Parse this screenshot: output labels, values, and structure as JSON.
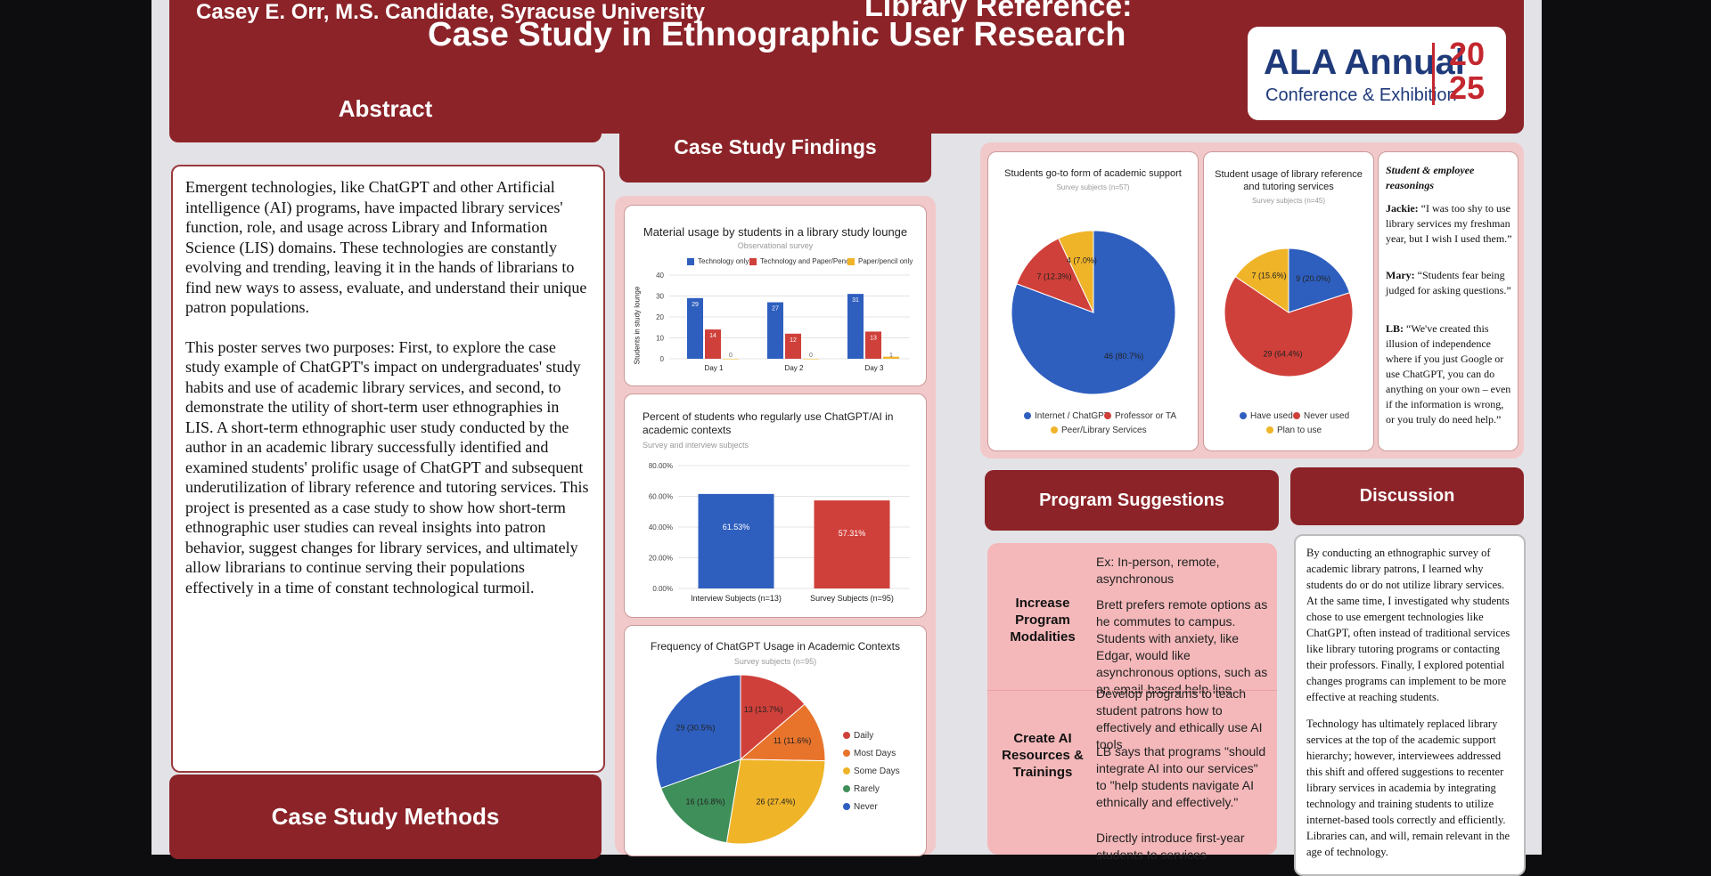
{
  "header": {
    "title_line1": "Case Study in Ethnographic User Research",
    "title_fragment_top": "Library Reference:",
    "author": "Casey E. Orr, M.S. Candidate, Syracuse University"
  },
  "logo": {
    "name": "ALA Annual",
    "subtitle": "Conference & Exhibition",
    "year_top": "20",
    "year_bottom": "25"
  },
  "abstract": {
    "heading": "Abstract",
    "para1": "Emergent technologies, like ChatGPT and other Artificial intelligence (AI) programs, have impacted library services' function, role, and usage across Library and Information Science (LIS) domains. These technologies are constantly evolving and trending, leaving it in the hands of librarians to find new ways to assess, evaluate, and understand their unique patron populations.",
    "para2": "This poster serves two purposes: First, to explore the case study example of ChatGPT's impact on undergraduates' study habits and use of academic library services, and second, to demonstrate the utility of short-term user ethnographies in LIS. A short-term ethnographic user study conducted by the author in an academic library successfully identified and examined students' prolific usage of ChatGPT and subsequent underutilization of library reference and tutoring services. This project is presented as a case study to show how short-term ethnographic user studies can reveal insights into patron behavior, suggest changes for library services, and ultimately allow librarians to continue serving their populations effectively in a time of constant technological turmoil."
  },
  "methods": {
    "heading": "Case Study Methods"
  },
  "findings": {
    "heading": "Case Study Findings"
  },
  "program": {
    "heading": "Program Suggestions",
    "rows": [
      {
        "head": "Increase Program Modalities",
        "text1": "Ex: In-person, remote, asynchronous",
        "text2": "Brett prefers remote options as he commutes to campus. Students with anxiety, like Edgar, would like asynchronous options, such as an email-based help-line."
      },
      {
        "head": "Create AI Resources & Trainings",
        "text1": "Develop programs to teach student patrons how to effectively and ethically use AI tools",
        "text2": "LB says that programs \"should integrate AI into our services\" to \"help students navigate AI ethnically and effectively.\"",
        "text3": "Directly introduce first-year students to services"
      }
    ]
  },
  "discussion": {
    "heading": "Discussion",
    "para1": "By conducting an ethnographic survey of academic library patrons, I learned why students do or do not utilize library services. At the same time, I investigated why students chose to use emergent technologies like ChatGPT, often instead of traditional services like library tutoring programs or contacting their professors. Finally, I explored potential changes programs can implement to be more effective at reaching students.",
    "para2": "Technology has ultimately replaced library services at the top of the academic support hierarchy; however, interviewees addressed this shift and offered suggestions to recenter library services in academia by integrating technology and training students to utilize internet-based tools correctly and efficiently. Libraries can, and will, remain relevant in the age of technology."
  },
  "quotes": {
    "heading": "Student & employee reasonings",
    "items": [
      {
        "who": "Jackie:",
        "text": "“I was too shy to use library services my freshman year, but I wish I used them.”"
      },
      {
        "who": "Mary:",
        "text": "“Students fear being judged for asking questions.”"
      },
      {
        "who": "LB:",
        "text": "“We've created this illusion of independence where if you just Google or use ChatGPT, you can do anything on your own – even if the information is wrong, or you truly do need help.”"
      }
    ]
  },
  "colors": {
    "maroon": "#8b2328",
    "blue": "#2e5fbf",
    "red": "#d0403a",
    "yellow": "#f0b429",
    "green": "#3f8f5a",
    "plum": "#7a2a3a"
  },
  "chart_data": [
    {
      "type": "bar",
      "title": "Material usage by students in a library study lounge",
      "subtitle": "Observational survey",
      "ylabel": "Students in study lounge",
      "categories": [
        "Day 1",
        "Day 2",
        "Day 3"
      ],
      "series": [
        {
          "name": "Technology only",
          "values": [
            29,
            27,
            31
          ]
        },
        {
          "name": "Technology and Paper/Pencil",
          "values": [
            14,
            12,
            13
          ]
        },
        {
          "name": "Paper/pencil only",
          "values": [
            0,
            0,
            1
          ]
        }
      ],
      "yticks": [
        "0",
        "10",
        "20",
        "30",
        "40"
      ],
      "ylim": [
        0,
        40
      ]
    },
    {
      "type": "bar",
      "title": "Percent of students who regularly use ChatGPT/AI in academic contexts",
      "subtitle": "Survey and interview subjects",
      "categories": [
        "Interview Subjects (n=13)",
        "Survey Subjects (n=95)"
      ],
      "values": [
        61.53,
        57.31
      ],
      "labels": [
        "61.53%",
        "57.31%"
      ],
      "yticks": [
        "0.00%",
        "20.00%",
        "40.00%",
        "60.00%",
        "80.00%"
      ],
      "ylim": [
        0,
        80
      ]
    },
    {
      "type": "pie",
      "title": "Frequency of ChatGPT Usage in Academic Contexts",
      "subtitle": "Survey subjects (n=95)",
      "slices": [
        {
          "name": "Daily",
          "value": 13,
          "label": "13 (13.7%)"
        },
        {
          "name": "Most Days",
          "value": 11,
          "label": "11 (11.6%)"
        },
        {
          "name": "Some Days",
          "value": 26,
          "label": "26 (27.4%)"
        },
        {
          "name": "Rarely",
          "value": 16,
          "label": "16 (16.8%)"
        },
        {
          "name": "Never",
          "value": 29,
          "label": "29 (30.5%)"
        }
      ]
    },
    {
      "type": "pie",
      "title": "Students go-to form of academic support",
      "subtitle": "Survey subjects (n=57)",
      "slices": [
        {
          "name": "Internet / ChatGPT",
          "value": 46,
          "label": "46 (80.7%)"
        },
        {
          "name": "Professor or TA",
          "value": 7,
          "label": "7 (12.3%)"
        },
        {
          "name": "Peer/Library Services",
          "value": 4,
          "label": "4 (7.0%)"
        }
      ]
    },
    {
      "type": "pie",
      "title": "Student usage of library reference and tutoring services",
      "subtitle": "Survey subjects (n=45)",
      "slices": [
        {
          "name": "Have used",
          "value": 9,
          "label": "9 (20.0%)"
        },
        {
          "name": "Never used",
          "value": 29,
          "label": "29 (64.4%)"
        },
        {
          "name": "Plan to use",
          "value": 7,
          "label": "7 (15.6%)"
        }
      ]
    }
  ]
}
